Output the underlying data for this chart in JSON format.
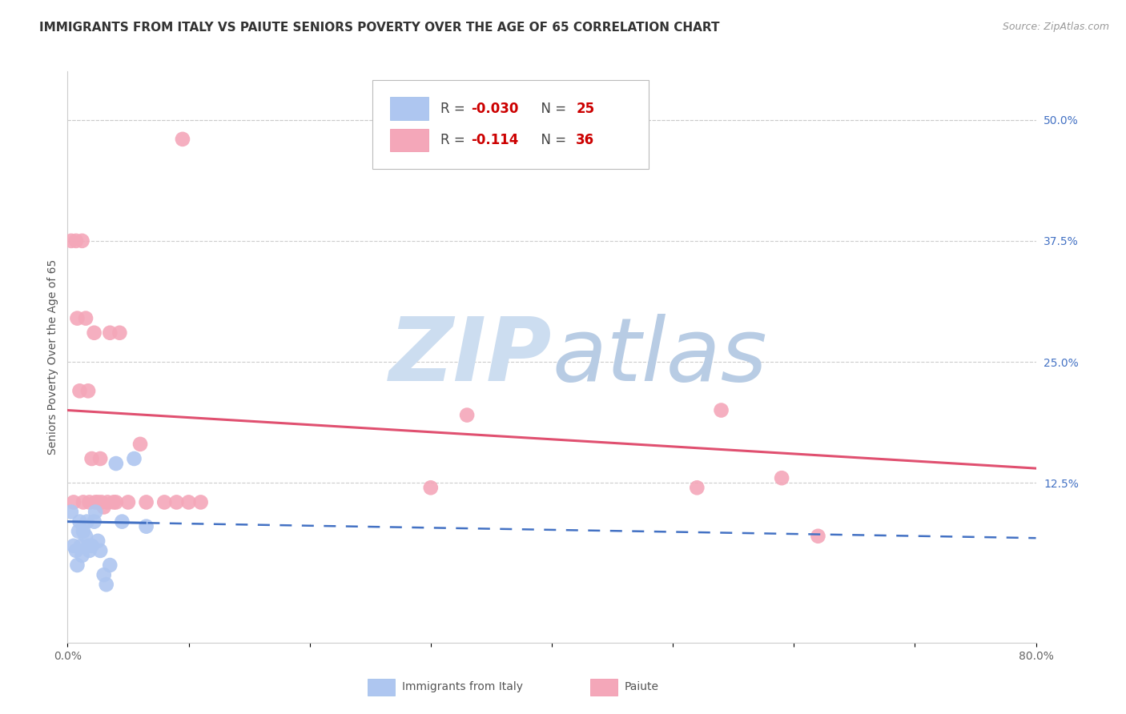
{
  "title": "IMMIGRANTS FROM ITALY VS PAIUTE SENIORS POVERTY OVER THE AGE OF 65 CORRELATION CHART",
  "source": "Source: ZipAtlas.com",
  "ylabel": "Seniors Poverty Over the Age of 65",
  "xlim": [
    0.0,
    0.8
  ],
  "ylim": [
    -0.04,
    0.55
  ],
  "xticks": [
    0.0,
    0.1,
    0.2,
    0.3,
    0.4,
    0.5,
    0.6,
    0.7,
    0.8
  ],
  "xticklabels": [
    "0.0%",
    "",
    "",
    "",
    "",
    "",
    "",
    "",
    "80.0%"
  ],
  "yticks_right": [
    0.125,
    0.25,
    0.375,
    0.5
  ],
  "yticks_right_labels": [
    "12.5%",
    "25.0%",
    "37.5%",
    "50.0%"
  ],
  "italy_R": -0.03,
  "italy_N": 25,
  "paiute_R": -0.114,
  "paiute_N": 36,
  "italy_color": "#aec6f0",
  "paiute_color": "#f4a7b9",
  "italy_line_color": "#4472c4",
  "paiute_line_color": "#e05070",
  "watermark": "ZIPatlas",
  "watermark_color_zip": "#c8ddf0",
  "watermark_color_atlas": "#a8c8e8",
  "background_color": "#ffffff",
  "grid_color": "#cccccc",
  "italy_x": [
    0.003,
    0.005,
    0.007,
    0.008,
    0.009,
    0.01,
    0.011,
    0.012,
    0.013,
    0.015,
    0.016,
    0.017,
    0.018,
    0.02,
    0.022,
    0.023,
    0.025,
    0.027,
    0.03,
    0.032,
    0.035,
    0.04,
    0.045,
    0.055,
    0.065
  ],
  "italy_y": [
    0.095,
    0.06,
    0.055,
    0.04,
    0.075,
    0.085,
    0.06,
    0.05,
    0.075,
    0.07,
    0.085,
    0.06,
    0.055,
    0.06,
    0.085,
    0.095,
    0.065,
    0.055,
    0.03,
    0.02,
    0.04,
    0.145,
    0.085,
    0.15,
    0.08
  ],
  "paiute_x": [
    0.003,
    0.005,
    0.007,
    0.008,
    0.01,
    0.012,
    0.013,
    0.015,
    0.017,
    0.018,
    0.02,
    0.022,
    0.023,
    0.025,
    0.027,
    0.028,
    0.03,
    0.033,
    0.035,
    0.038,
    0.04,
    0.043,
    0.05,
    0.06,
    0.065,
    0.08,
    0.09,
    0.095,
    0.1,
    0.11,
    0.3,
    0.33,
    0.52,
    0.54,
    0.59,
    0.62
  ],
  "paiute_y": [
    0.375,
    0.105,
    0.375,
    0.295,
    0.22,
    0.375,
    0.105,
    0.295,
    0.22,
    0.105,
    0.15,
    0.28,
    0.105,
    0.105,
    0.15,
    0.105,
    0.1,
    0.105,
    0.28,
    0.105,
    0.105,
    0.28,
    0.105,
    0.165,
    0.105,
    0.105,
    0.105,
    0.48,
    0.105,
    0.105,
    0.12,
    0.195,
    0.12,
    0.2,
    0.13,
    0.07
  ],
  "title_fontsize": 11,
  "label_fontsize": 10,
  "tick_fontsize": 10,
  "legend_fontsize": 11
}
